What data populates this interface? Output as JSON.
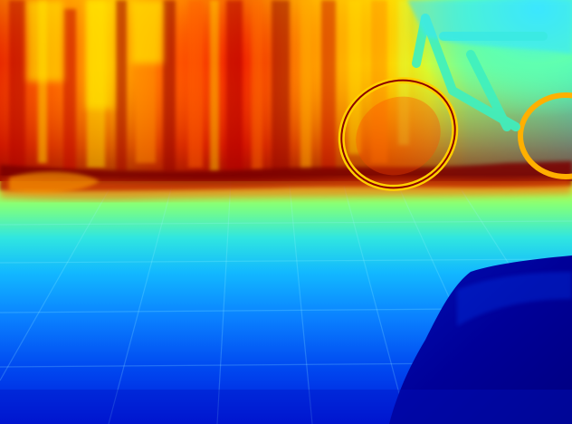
{
  "image": {
    "kind": "false-color depth map photograph",
    "colormap": "jet",
    "palette": {
      "far_dark_red": "#8b0000",
      "red": "#e01000",
      "orange": "#ff7a00",
      "yellow": "#f4f000",
      "light_green": "#9cff60",
      "cyan": "#22d8ff",
      "blue": "#0a78ff",
      "dark_blue": "#0010c8",
      "navy": "#00009a"
    },
    "regions": [
      "curtain-wall-background",
      "floor-baseline-shadow",
      "bicycle-wheel",
      "bicycle-frame",
      "tiled-floor",
      "dark-foreground-object"
    ]
  }
}
